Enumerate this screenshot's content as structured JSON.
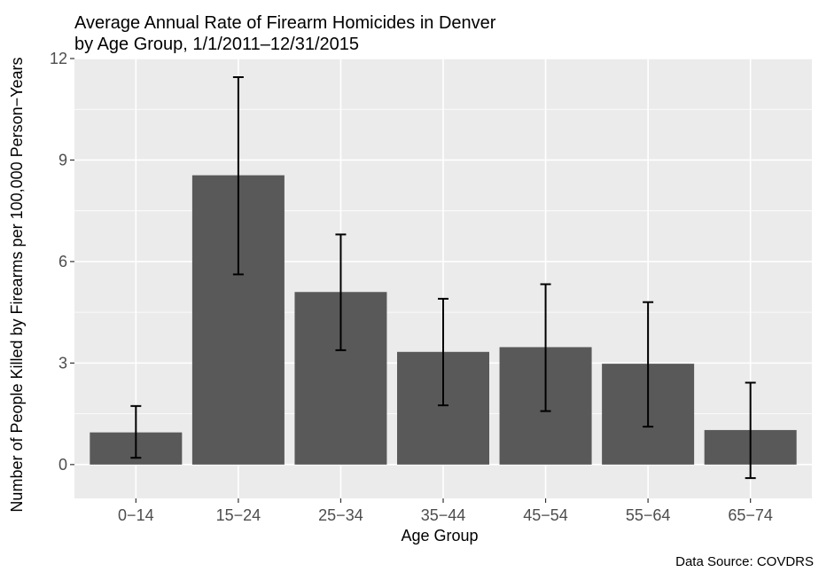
{
  "chart_data": {
    "type": "bar",
    "title": [
      "Average Annual Rate of Firearm Homicides in Denver",
      "by Age Group, 1/1/2011–12/31/2015"
    ],
    "xlabel": "Age Group",
    "ylabel": "Number of People Killed by Firearms per 100,000 Person−Years",
    "caption": "Data Source: COVDRS",
    "categories": [
      "0−14",
      "15−24",
      "25−34",
      "35−44",
      "45−54",
      "55−64",
      "65−74"
    ],
    "values": [
      0.95,
      8.55,
      5.1,
      3.33,
      3.47,
      2.98,
      1.02
    ],
    "error_low": [
      0.2,
      5.62,
      3.38,
      1.75,
      1.58,
      1.12,
      -0.4
    ],
    "error_high": [
      1.73,
      11.45,
      6.8,
      4.9,
      5.33,
      4.8,
      2.42
    ],
    "ylim": [
      -1.0,
      12.0
    ],
    "yticks": [
      0,
      3,
      6,
      9,
      12
    ],
    "ytick_labels": [
      "0",
      "3",
      "6",
      "9",
      "12"
    ],
    "grid": true,
    "colors": {
      "bar": "#595959",
      "panel": "#ebebeb",
      "grid": "#ffffff",
      "error_bar": "#000000"
    }
  }
}
